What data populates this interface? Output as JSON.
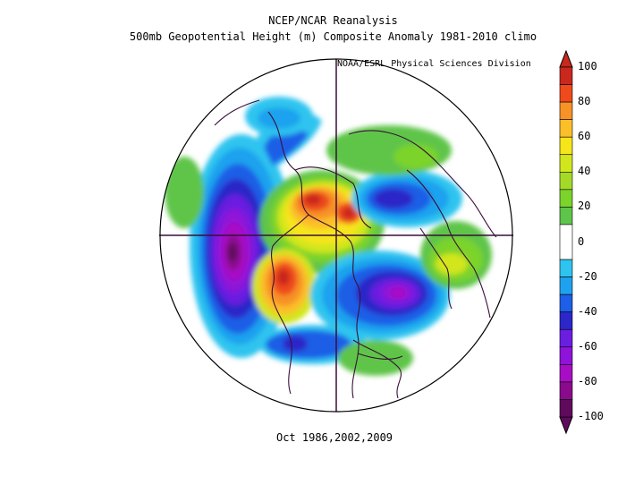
{
  "header": {
    "line1": "NCEP/NCAR Reanalysis",
    "line2": "500mb Geopotential Height (m) Composite Anomaly 1981-2010 climo",
    "credit": "NOAA/ESRL Physical Sciences Division"
  },
  "footer": {
    "dates": "Oct 1986,2002,2009"
  },
  "colorbar": {
    "min": -100,
    "max": 100,
    "labels": [
      "100",
      "80",
      "60",
      "40",
      "20",
      "0",
      "-20",
      "-40",
      "-60",
      "-80",
      "-100"
    ],
    "label_values": [
      100,
      80,
      60,
      40,
      20,
      0,
      -20,
      -40,
      -60,
      -80,
      -100
    ],
    "bins": [
      {
        "from": 90,
        "to": 100,
        "color": "#c8281e"
      },
      {
        "from": 80,
        "to": 90,
        "color": "#ee4a1c"
      },
      {
        "from": 70,
        "to": 80,
        "color": "#f79226"
      },
      {
        "from": 60,
        "to": 70,
        "color": "#fbbf2a"
      },
      {
        "from": 50,
        "to": 60,
        "color": "#f6e51a"
      },
      {
        "from": 40,
        "to": 50,
        "color": "#d2e61e"
      },
      {
        "from": 30,
        "to": 40,
        "color": "#a5d928"
      },
      {
        "from": 20,
        "to": 30,
        "color": "#7bd32c"
      },
      {
        "from": 10,
        "to": 20,
        "color": "#5ec54a"
      },
      {
        "from": -10,
        "to": 10,
        "color": "#ffffff"
      },
      {
        "from": -20,
        "to": -10,
        "color": "#2ec4ef"
      },
      {
        "from": -30,
        "to": -20,
        "color": "#1fa2ee"
      },
      {
        "from": -40,
        "to": -30,
        "color": "#1d5fe6"
      },
      {
        "from": -50,
        "to": -40,
        "color": "#2c27c8"
      },
      {
        "from": -60,
        "to": -50,
        "color": "#6a1fe0"
      },
      {
        "from": -70,
        "to": -60,
        "color": "#8f13d8"
      },
      {
        "from": -80,
        "to": -70,
        "color": "#a70ec4"
      },
      {
        "from": -90,
        "to": -80,
        "color": "#8a0a8c"
      },
      {
        "from": -100,
        "to": -90,
        "color": "#5e0b5c"
      }
    ]
  },
  "map": {
    "projection": "north polar stereographic",
    "boundary_color": "#3a0f3a",
    "anomalies": [
      {
        "region": "north-pacific",
        "value": -95
      },
      {
        "region": "central-north-america",
        "value": 90
      },
      {
        "region": "canadian-arctic",
        "value": 85
      },
      {
        "region": "north-atlantic",
        "value": -65
      },
      {
        "region": "barents-sea",
        "value": -50
      },
      {
        "region": "siberia",
        "value": 30
      },
      {
        "region": "eastern-europe",
        "value": 35
      },
      {
        "region": "northwest-pacific",
        "value": -45
      },
      {
        "region": "east-asia",
        "value": 25
      },
      {
        "region": "eastern-pacific",
        "value": 20
      }
    ]
  }
}
